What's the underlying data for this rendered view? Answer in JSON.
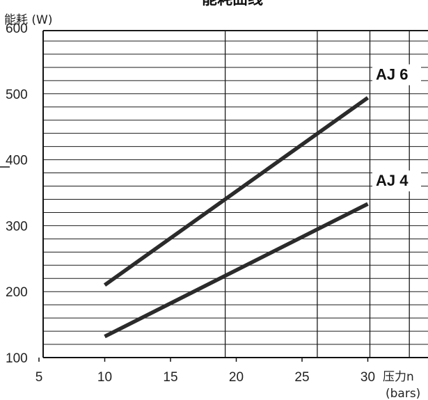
{
  "chart_data": {
    "type": "line",
    "title": "能耗曲线",
    "ylabel": "能耗 (W)",
    "xlabel": "压力n",
    "xunit": "(bars)",
    "xlim": [
      5,
      32
    ],
    "ylim": [
      100,
      650
    ],
    "xticks": [
      "5",
      "10",
      "15",
      "20",
      "25",
      "30"
    ],
    "yticks": [
      "100",
      "200",
      "300",
      "400",
      "500",
      "600"
    ],
    "grid": true,
    "series": [
      {
        "name": "AJ 6",
        "x": [
          10,
          30
        ],
        "y": [
          210,
          494
        ]
      },
      {
        "name": "AJ 4",
        "x": [
          10,
          30
        ],
        "y": [
          132,
          333
        ]
      }
    ]
  }
}
